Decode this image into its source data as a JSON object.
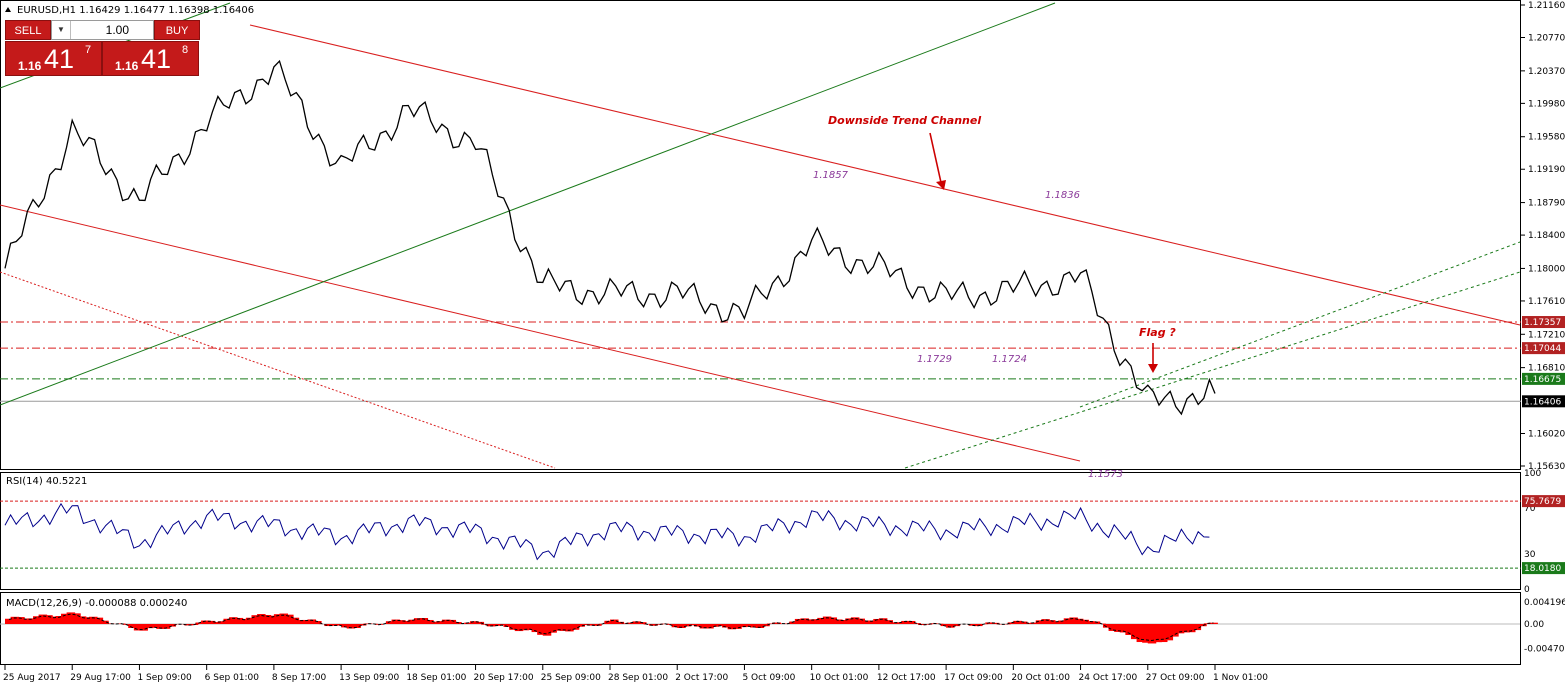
{
  "header": {
    "symbol_info": "EURUSD,H1  1.16429 1.16477 1.16398 1.16406",
    "rsi_label": "RSI(14) 40.5221",
    "macd_label": "MACD(12,26,9) -0.000088 0.000240"
  },
  "trade_panel": {
    "sell_label": "SELL",
    "buy_label": "BUY",
    "lot_value": "1.00",
    "sell_prefix": "1.16",
    "sell_big": "41",
    "sell_pip": "7",
    "buy_prefix": "1.16",
    "buy_big": "41",
    "buy_pip": "8"
  },
  "colors": {
    "candles": "#000000",
    "channel": "#d91f1f",
    "trend_green": "#1a7a1a",
    "rsi_line": "#00008b",
    "macd_hist": "#ff0000",
    "annotation": "#cc0000",
    "level_label": "#8b3a9a"
  },
  "chart_data": [
    {
      "type": "line",
      "panel": "price",
      "symbol": "EURUSD",
      "timeframe": "H1",
      "y_ticks": [
        "1.21160",
        "1.20770",
        "1.20370",
        "1.19980",
        "1.19580",
        "1.19190",
        "1.18790",
        "1.18400",
        "1.18000",
        "1.17610",
        "1.17210",
        "1.16810",
        "1.16020",
        "1.15630"
      ],
      "ylim": [
        1.1555,
        1.212
      ],
      "x_ticks": [
        "25 Aug 2017",
        "29 Aug 17:00",
        "1 Sep 09:00",
        "6 Sep 01:00",
        "8 Sep 17:00",
        "13 Sep 09:00",
        "18 Sep 01:00",
        "20 Sep 17:00",
        "25 Sep 09:00",
        "28 Sep 01:00",
        "2 Oct 17:00",
        "5 Oct 09:00",
        "10 Oct 01:00",
        "12 Oct 17:00",
        "17 Oct 09:00",
        "20 Oct 01:00",
        "24 Oct 17:00",
        "27 Oct 09:00",
        "1 Nov 01:00"
      ],
      "series": [
        {
          "x": [
            "25 Aug 2017",
            "29 Aug 17:00",
            "1 Sep 09:00",
            "6 Sep 01:00",
            "8 Sep 17:00",
            "13 Sep 09:00",
            "18 Sep 01:00",
            "20 Sep 17:00",
            "25 Sep 09:00",
            "28 Sep 01:00",
            "2 Oct 17:00",
            "5 Oct 09:00",
            "10 Oct 01:00",
            "12 Oct 17:00",
            "17 Oct 09:00",
            "20 Oct 01:00",
            "24 Oct 17:00",
            "27 Oct 09:00",
            "1 Nov 01:00"
          ],
          "values": [
            1.18,
            1.1965,
            1.188,
            1.1975,
            1.204,
            1.192,
            1.199,
            1.195,
            1.178,
            1.177,
            1.177,
            1.1745,
            1.183,
            1.18,
            1.1765,
            1.1775,
            1.179,
            1.164,
            1.165
          ]
        }
      ],
      "level_lines": [
        {
          "value": 1.17357,
          "label": "1.17357",
          "style": "dashdot",
          "color": "#d91f1f"
        },
        {
          "value": 1.17044,
          "label": "1.17044",
          "style": "dashdot",
          "color": "#d91f1f"
        },
        {
          "value": 1.16675,
          "label": "1.16675",
          "style": "dashdot",
          "color": "#1a7a1a"
        },
        {
          "value": 1.16406,
          "label": "1.16406",
          "style": "solid",
          "color": "#9a9a9a"
        }
      ],
      "annotations": [
        {
          "text": "Downside Trend Channel"
        },
        {
          "text": "Flag  ?"
        },
        {
          "text": "1.1857"
        },
        {
          "text": "1.1836"
        },
        {
          "text": "1.1729"
        },
        {
          "text": "1.1724"
        },
        {
          "text": "1.1573"
        }
      ]
    },
    {
      "type": "line",
      "panel": "RSI",
      "title": "RSI(14) 40.5221",
      "ylim": [
        0,
        100
      ],
      "y_ticks": [
        "100",
        "70",
        "30",
        "0"
      ],
      "levels": [
        {
          "value": 75.7679,
          "label": "75.7679"
        },
        {
          "value": 18.018,
          "label": "18.0180"
        }
      ],
      "series": [
        {
          "x": [
            "25 Aug 2017",
            "29 Aug 17:00",
            "1 Sep 09:00",
            "6 Sep 01:00",
            "8 Sep 17:00",
            "13 Sep 09:00",
            "18 Sep 01:00",
            "20 Sep 17:00",
            "25 Sep 09:00",
            "28 Sep 01:00",
            "2 Oct 17:00",
            "5 Oct 09:00",
            "10 Oct 01:00",
            "12 Oct 17:00",
            "17 Oct 09:00",
            "20 Oct 01:00",
            "24 Oct 17:00",
            "27 Oct 09:00",
            "1 Nov 01:00"
          ],
          "values": [
            55,
            68,
            40,
            62,
            55,
            45,
            58,
            50,
            32,
            52,
            48,
            45,
            62,
            55,
            50,
            56,
            62,
            35,
            52
          ]
        }
      ]
    },
    {
      "type": "bar",
      "panel": "MACD",
      "title": "MACD(12,26,9) -0.000088 0.000240",
      "y_ticks": [
        "0.004196",
        "0.00",
        "-0.004703"
      ],
      "ylim": [
        -0.0055,
        0.005
      ],
      "series": [
        {
          "x": [
            "25 Aug 2017",
            "29 Aug 17:00",
            "1 Sep 09:00",
            "6 Sep 01:00",
            "8 Sep 17:00",
            "13 Sep 09:00",
            "18 Sep 01:00",
            "20 Sep 17:00",
            "25 Sep 09:00",
            "28 Sep 01:00",
            "2 Oct 17:00",
            "5 Oct 09:00",
            "10 Oct 01:00",
            "12 Oct 17:00",
            "17 Oct 09:00",
            "20 Oct 01:00",
            "24 Oct 17:00",
            "27 Oct 09:00",
            "1 Nov 01:00"
          ],
          "values": [
            0.001,
            0.002,
            -0.0012,
            0.0005,
            0.002,
            -0.0008,
            0.001,
            0.0002,
            -0.002,
            0.0006,
            -0.0005,
            -0.0008,
            0.0012,
            0.0008,
            -0.0004,
            0.0003,
            0.0011,
            -0.004,
            0.0006
          ]
        }
      ]
    }
  ]
}
